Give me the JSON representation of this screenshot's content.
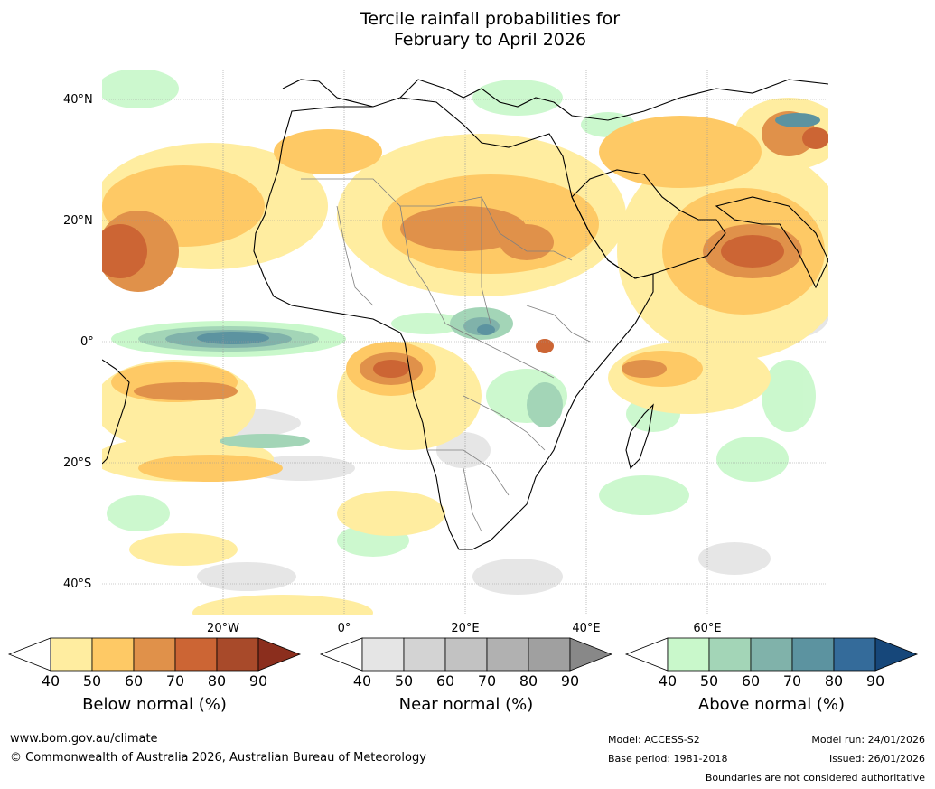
{
  "title": {
    "line1": "Tercile rainfall probabilities for",
    "line2": "February to April 2026"
  },
  "map": {
    "lat_labels": [
      "40°N",
      "20°N",
      "0°",
      "20°S",
      "40°S"
    ],
    "lon_labels": [
      "20°W",
      "0°",
      "20°E",
      "40°E",
      "60°E"
    ]
  },
  "legends": [
    {
      "title": "Below normal (%)",
      "ticks": [
        "40",
        "50",
        "60",
        "70",
        "80",
        "90"
      ],
      "colors": [
        "#ffeda0",
        "#fec965",
        "#e0914a",
        "#cc6534",
        "#a84a2a",
        "#8b2e1d"
      ]
    },
    {
      "title": "Near normal (%)",
      "ticks": [
        "40",
        "50",
        "60",
        "70",
        "80",
        "90"
      ],
      "colors": [
        "#e5e5e5",
        "#d3d3d3",
        "#c2c2c2",
        "#b1b1b1",
        "#a0a0a0",
        "#888888"
      ]
    },
    {
      "title": "Above normal (%)",
      "ticks": [
        "40",
        "50",
        "60",
        "70",
        "80",
        "90"
      ],
      "colors": [
        "#c9f8cb",
        "#a3d5b7",
        "#80b2aa",
        "#5c93a0",
        "#346b9a",
        "#16477a"
      ]
    }
  ],
  "footer": {
    "website": "www.bom.gov.au/climate",
    "copyright": "© Commonwealth of Australia 2026, Australian Bureau of Meteorology",
    "model": "Model: ACCESS-S2",
    "base_period": "Base period: 1981-2018",
    "model_run": "Model run: 24/01/2026",
    "issued": "Issued: 26/01/2026",
    "disclaimer": "Boundaries are not considered authoritative"
  }
}
